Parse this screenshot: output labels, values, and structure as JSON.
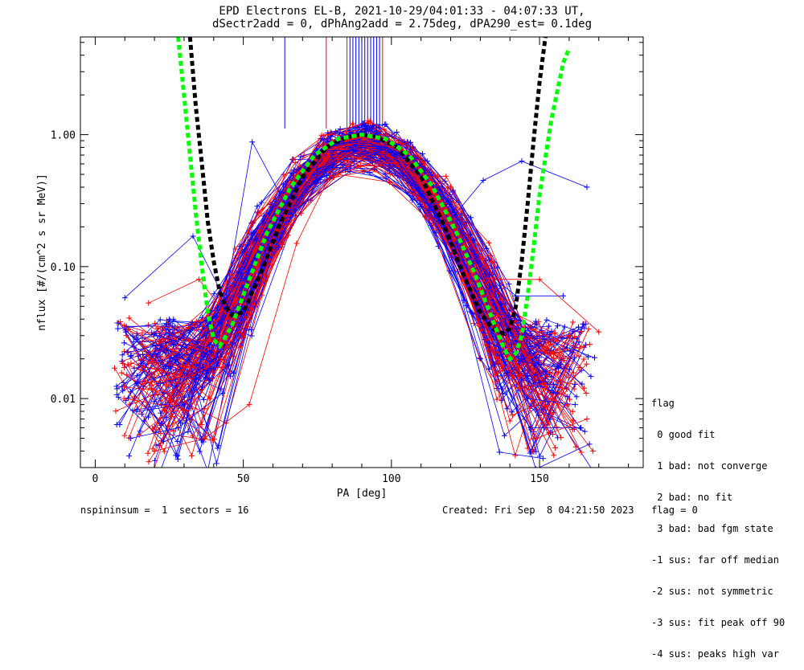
{
  "header": {
    "title_line1": "EPD Electrons EL-B, 2021-10-29/04:01:33 - 04:07:33 UT,",
    "title_line2": "dSectr2add = 0, dPhAng2add = 2.75deg, dPA290_est=   0.1deg"
  },
  "legend": {
    "title": "flag",
    "entries": [
      " 0 good fit",
      " 1 bad: not converge",
      " 2 bad: no fit",
      " 3 bad: bad fgm state",
      "-1 sus: far off median",
      "-2 sus: not symmetric",
      "-3 sus: fit peak off 90",
      "-4 sus: peaks high var"
    ]
  },
  "footer": {
    "left": "nspininsum =  1  sectors = 16",
    "right": "Created: Fri Sep  8 04:21:50 2023   flag = 0"
  },
  "colors": {
    "series_a": "#0000ff",
    "series_b": "#ff0000",
    "fit_black": "#000000",
    "fit_green": "#00ff00",
    "background": "#ffffff"
  },
  "chart_data": {
    "type": "line",
    "title": "EPD Electrons EL-B, 2021-10-29/04:01:33 - 04:07:33 UT,",
    "subtitle": "dSectr2add = 0, dPhAng2add = 2.75deg, dPA290_est=   0.1deg",
    "xlabel": "PA [deg]",
    "ylabel": "nflux [#/(cm^2 s sr MeV)]",
    "xlim": [
      -5,
      185
    ],
    "ylim": [
      0.003,
      5.5
    ],
    "yscale": "log",
    "x_ticks": [
      0,
      50,
      100,
      150
    ],
    "x_tick_labels": [
      "0",
      "50",
      "100",
      "150"
    ],
    "y_ticks": [
      0.01,
      0.1,
      1.0
    ],
    "y_tick_labels": [
      "0.01",
      "0.10",
      "1.00"
    ],
    "grid": false,
    "legend_position": "bottom-right",
    "series": [
      {
        "color": "#0000ff",
        "marker": "+",
        "representative_traces": [
          {
            "x": [
              10,
              33,
              46,
              62,
              78,
              88,
              98,
              114,
              128,
              142,
              158
            ],
            "y": [
              0.058,
              0.17,
              0.045,
              0.14,
              0.55,
              0.83,
              0.8,
              0.3,
              0.11,
              0.06,
              0.06
            ]
          },
          {
            "x": [
              22,
              40,
              53,
              66,
              80,
              90,
              100,
              118,
              131,
              144,
              166
            ],
            "y": [
              0.013,
              0.017,
              0.88,
              0.25,
              0.7,
              0.8,
              0.75,
              0.2,
              0.45,
              0.63,
              0.4
            ]
          },
          {
            "x": [
              14,
              30,
              45,
              60,
              75,
              88,
              102,
              116,
              132,
              146,
              162
            ],
            "y": [
              0.008,
              0.009,
              0.018,
              0.2,
              0.55,
              0.75,
              0.72,
              0.22,
              0.04,
              0.01,
              0.009
            ]
          },
          {
            "x": [
              12,
              28,
              43,
              58,
              74,
              87,
              101,
              115,
              130,
              147,
              164
            ],
            "y": [
              0.005,
              0.006,
              0.011,
              0.14,
              0.5,
              0.72,
              0.7,
              0.18,
              0.02,
              0.006,
              0.006
            ]
          }
        ]
      },
      {
        "color": "#ff0000",
        "marker": "+",
        "representative_traces": [
          {
            "x": [
              18,
              35,
              50,
              66,
              80,
              91,
              104,
              120,
              135,
              150,
              170
            ],
            "y": [
              0.053,
              0.08,
              0.03,
              0.3,
              0.9,
              0.95,
              0.85,
              0.4,
              0.08,
              0.08,
              0.032
            ]
          },
          {
            "x": [
              16,
              33,
              49,
              64,
              79,
              92,
              103,
              118,
              134,
              152,
              168
            ],
            "y": [
              0.013,
              0.015,
              0.025,
              0.26,
              0.8,
              0.88,
              0.78,
              0.3,
              0.06,
              0.012,
              0.004
            ]
          },
          {
            "x": [
              20,
              37,
              52,
              68,
              82,
              93,
              106,
              121,
              136,
              149,
              166
            ],
            "y": [
              0.004,
              0.005,
              0.009,
              0.15,
              0.65,
              0.8,
              0.6,
              0.16,
              0.02,
              0.005,
              0.007
            ]
          }
        ]
      }
    ],
    "fits": [
      {
        "color": "#000000",
        "style": "dashed",
        "x": [
          32,
          34,
          36,
          38,
          40,
          42,
          44,
          46,
          50,
          56,
          62,
          70,
          78,
          85,
          90,
          95,
          102,
          110,
          118,
          124,
          130,
          134,
          138,
          140,
          142,
          144,
          146,
          148,
          150,
          152
        ],
        "y": [
          5.5,
          1.6,
          0.6,
          0.22,
          0.11,
          0.065,
          0.05,
          0.043,
          0.045,
          0.09,
          0.2,
          0.48,
          0.8,
          0.96,
          1.0,
          0.96,
          0.8,
          0.48,
          0.2,
          0.09,
          0.045,
          0.034,
          0.031,
          0.034,
          0.05,
          0.11,
          0.3,
          0.9,
          2.5,
          5.5
        ]
      },
      {
        "color": "#00ff00",
        "style": "dashed",
        "x": [
          28,
          30,
          32,
          34,
          36,
          38,
          40,
          42,
          46,
          52,
          58,
          66,
          74,
          82,
          90,
          98,
          106,
          114,
          122,
          128,
          134,
          138,
          140,
          142,
          144,
          146,
          148,
          150,
          154,
          158,
          160
        ],
        "y": [
          5.5,
          2.0,
          0.7,
          0.25,
          0.1,
          0.045,
          0.028,
          0.025,
          0.035,
          0.08,
          0.18,
          0.4,
          0.7,
          0.93,
          1.0,
          0.93,
          0.7,
          0.4,
          0.18,
          0.09,
          0.04,
          0.024,
          0.02,
          0.022,
          0.03,
          0.06,
          0.14,
          0.35,
          1.3,
          3.5,
          4.5
        ]
      }
    ],
    "vertical_markers": [
      {
        "x": [
          64,
          86,
          87,
          88,
          89,
          90,
          91,
          92,
          93,
          94,
          95,
          96
        ],
        "color": "#0000ff"
      },
      {
        "x": [
          78,
          85,
          92,
          97
        ],
        "color": "#ff0000"
      }
    ]
  }
}
